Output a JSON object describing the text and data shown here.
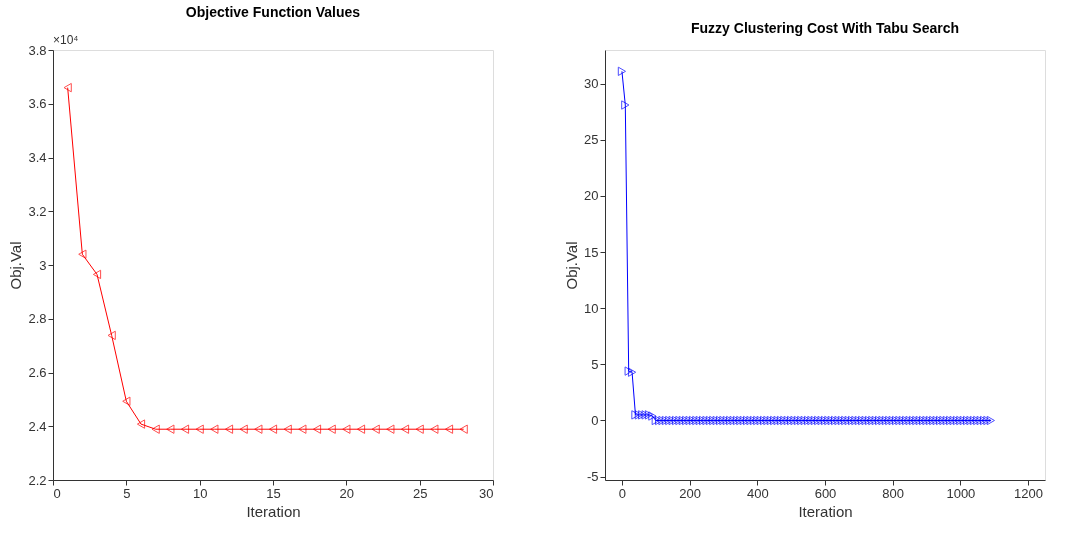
{
  "chart_data": [
    {
      "type": "line",
      "title": "Objective Function Values",
      "xlabel": "Iteration",
      "ylabel": "Obj.Val",
      "marker": "triangle",
      "grid": false,
      "annotations": [
        "×10⁴"
      ],
      "x": [
        1,
        2,
        3,
        4,
        5,
        6,
        7,
        8,
        9,
        10,
        11,
        12,
        13,
        14,
        15,
        16,
        17,
        18,
        19,
        20,
        21,
        22,
        23,
        24,
        25,
        26,
        27,
        28
      ],
      "series": [
        {
          "color": "#ff0000",
          "values": [
            3.66,
            3.04,
            2.965,
            2.738,
            2.493,
            2.408,
            2.389,
            2.389,
            2.389,
            2.389,
            2.389,
            2.389,
            2.389,
            2.389,
            2.389,
            2.389,
            2.389,
            2.389,
            2.389,
            2.389,
            2.389,
            2.389,
            2.389,
            2.389,
            2.389,
            2.389,
            2.389,
            2.389
          ]
        }
      ],
      "xlim": [
        0,
        30
      ],
      "xticks": [
        0,
        5,
        10,
        15,
        20,
        25,
        30
      ],
      "ylim": [
        2.2,
        3.8
      ],
      "yticks": [
        2.2,
        2.4,
        2.6,
        2.8,
        3,
        3.2,
        3.4,
        3.6,
        3.8
      ]
    },
    {
      "type": "line",
      "title": "Fuzzy Clustering Cost With Tabu Search",
      "xlabel": "Iteration",
      "ylabel": "Obj.Val",
      "marker": "triangle",
      "grid": false,
      "x": [
        0,
        10,
        20,
        30,
        40,
        50,
        60,
        70,
        80,
        90,
        100,
        110,
        120,
        130,
        140,
        150,
        160,
        170,
        180,
        190,
        200,
        210,
        220,
        230,
        240,
        250,
        260,
        270,
        280,
        290,
        300,
        310,
        320,
        330,
        340,
        350,
        360,
        370,
        380,
        390,
        400,
        410,
        420,
        430,
        440,
        450,
        460,
        470,
        480,
        490,
        500,
        510,
        520,
        530,
        540,
        550,
        560,
        570,
        580,
        590,
        600,
        610,
        620,
        630,
        640,
        650,
        660,
        670,
        680,
        690,
        700,
        710,
        720,
        730,
        740,
        750,
        760,
        770,
        780,
        790,
        800,
        810,
        820,
        830,
        840,
        850,
        860,
        870,
        880,
        890,
        900,
        910,
        920,
        930,
        940,
        950,
        960,
        970,
        980,
        990,
        1000,
        1010,
        1020,
        1030,
        1040,
        1050,
        1060,
        1070,
        1080,
        1090
      ],
      "series": [
        {
          "color": "#0000ff",
          "values": [
            31.1,
            28.1,
            4.4,
            4.3,
            0.5,
            0.5,
            0.5,
            0.5,
            0.5,
            0.4,
            0,
            0,
            0,
            0,
            0,
            0,
            0,
            0,
            0,
            0,
            0,
            0,
            0,
            0,
            0,
            0,
            0,
            0,
            0,
            0,
            0,
            0,
            0,
            0,
            0,
            0,
            0,
            0,
            0,
            0,
            0,
            0,
            0,
            0,
            0,
            0,
            0,
            0,
            0,
            0,
            0,
            0,
            0,
            0,
            0,
            0,
            0,
            0,
            0,
            0,
            0,
            0,
            0,
            0,
            0,
            0,
            0,
            0,
            0,
            0,
            0,
            0,
            0,
            0,
            0,
            0,
            0,
            0,
            0,
            0,
            0,
            0,
            0,
            0,
            0,
            0,
            0,
            0,
            0,
            0,
            0,
            0,
            0,
            0,
            0,
            0,
            0,
            0,
            0,
            0,
            0,
            0,
            0,
            0,
            0,
            0,
            0,
            0,
            0,
            0
          ]
        }
      ],
      "xlim": [
        -50,
        1250
      ],
      "xticks": [
        0,
        200,
        400,
        600,
        800,
        1000,
        1200
      ],
      "ylim": [
        -5.3,
        33
      ],
      "yticks": [
        -5,
        0,
        5,
        10,
        15,
        20,
        25,
        30
      ]
    }
  ]
}
